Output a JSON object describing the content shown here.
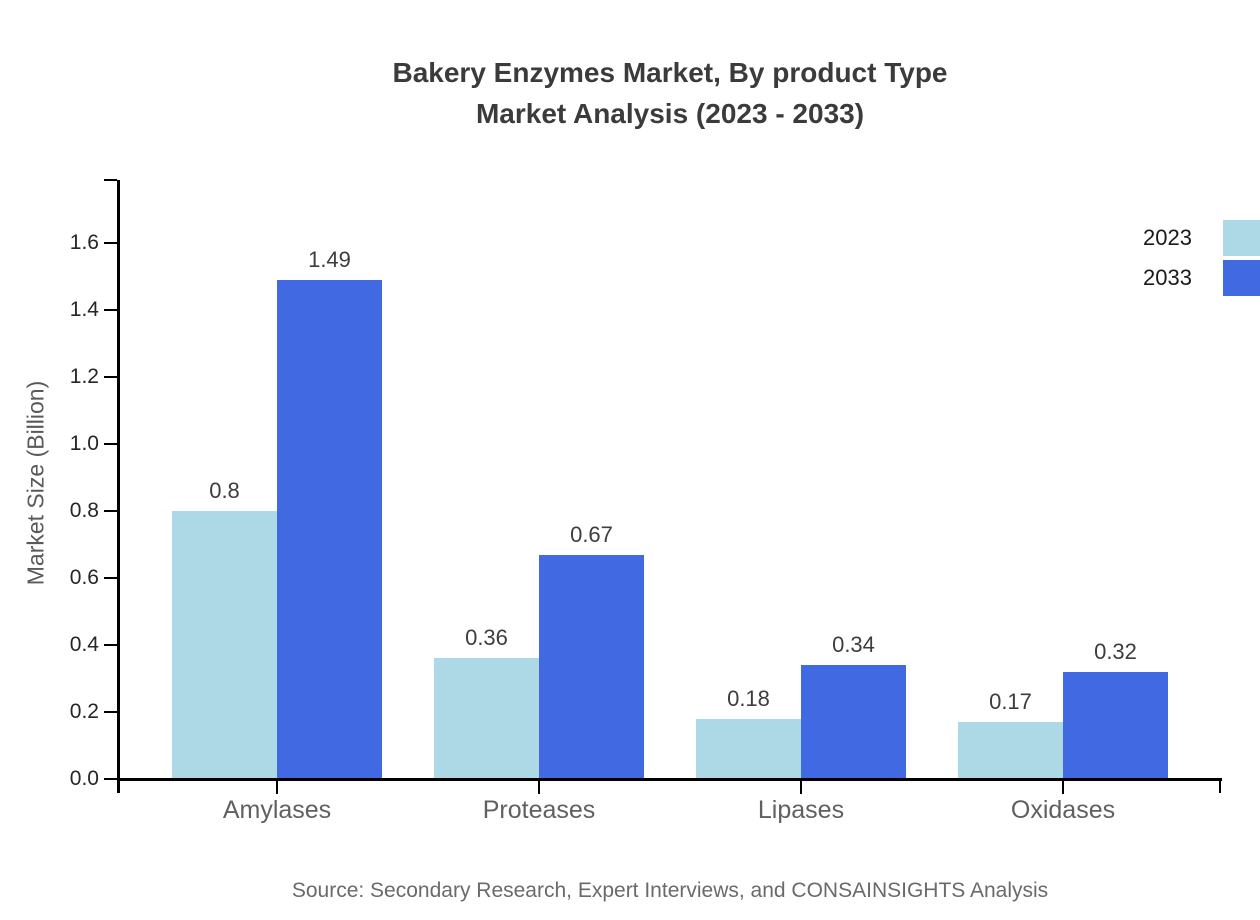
{
  "title": {
    "line1": "Bakery Enzymes Market, By product Type",
    "line2": "Market Analysis (2023 - 2033)"
  },
  "y_axis": {
    "label": "Market Size (Billion)",
    "tick_labels": [
      "0.0",
      "0.2",
      "0.4",
      "0.6",
      "0.8",
      "1.0",
      "1.2",
      "1.4",
      "1.6"
    ]
  },
  "x_axis": {
    "categories": [
      "Amylases",
      "Proteases",
      "Lipases",
      "Oxidases"
    ]
  },
  "legend": {
    "items": [
      {
        "label": "2023",
        "color": "#ADD8E6"
      },
      {
        "label": "2033",
        "color": "#4169E1"
      }
    ]
  },
  "footer": {
    "source_note": "Source: Secondary Research, Expert Interviews, and CONSAINSIGHTS Analysis"
  },
  "chart_data": {
    "type": "bar",
    "title": "Bakery Enzymes Market, By product Type Market Analysis (2023 - 2033)",
    "categories": [
      "Amylases",
      "Proteases",
      "Lipases",
      "Oxidases"
    ],
    "series": [
      {
        "name": "2023",
        "color": "#ADD8E6",
        "values": [
          0.8,
          0.36,
          0.18,
          0.17
        ],
        "value_labels": [
          "0.8",
          "0.36",
          "0.18",
          "0.17"
        ]
      },
      {
        "name": "2033",
        "color": "#4169E1",
        "values": [
          1.49,
          0.67,
          0.34,
          0.32
        ],
        "value_labels": [
          "1.49",
          "0.67",
          "0.34",
          "0.32"
        ]
      }
    ],
    "xlabel": "",
    "ylabel": "Market Size (Billion)",
    "ylim": [
      0,
      1.79
    ],
    "yticks": [
      0.0,
      0.2,
      0.4,
      0.6,
      0.8,
      1.0,
      1.2,
      1.4,
      1.6
    ],
    "grid": false,
    "legend_position": "upper right",
    "value_labels": true
  }
}
